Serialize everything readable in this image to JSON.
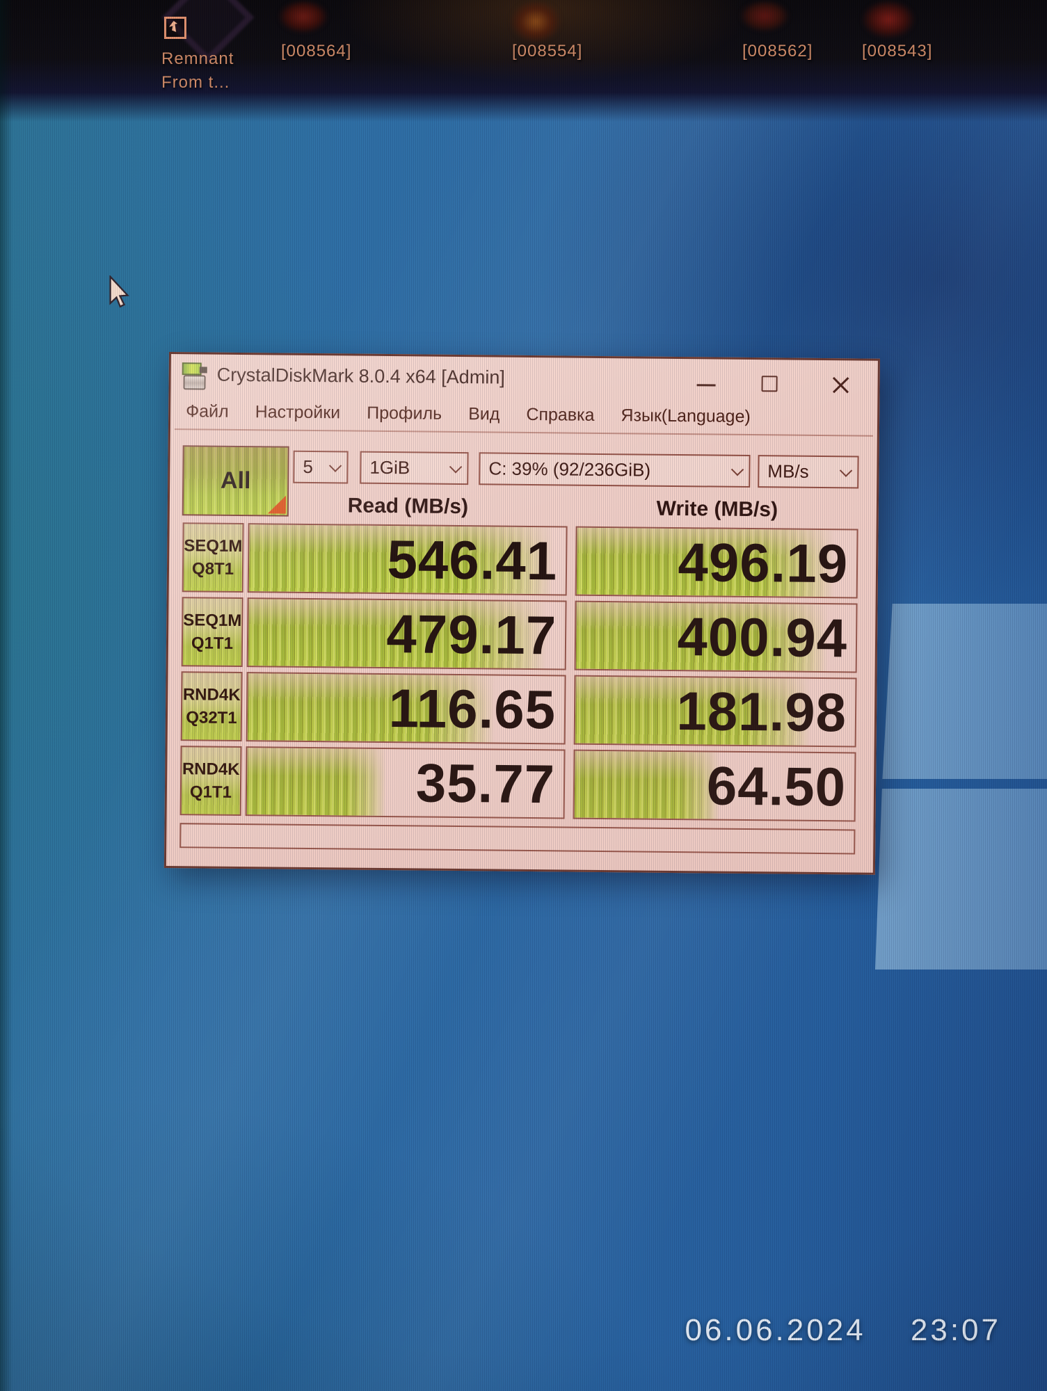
{
  "desktop": {
    "icons": {
      "remnant": {
        "line1": "Remnant",
        "line2": "From t..."
      },
      "shots": [
        "[008564]",
        "[008554]",
        "[008562]",
        "[008543]"
      ]
    },
    "timestamp": {
      "date": "06.06.2024",
      "time": "23:07"
    }
  },
  "window": {
    "title": "CrystalDiskMark 8.0.4 x64 [Admin]",
    "menu": [
      "Файл",
      "Настройки",
      "Профиль",
      "Вид",
      "Справка",
      "Язык(Language)"
    ],
    "toolbar": {
      "all": "All",
      "count": "5",
      "size": "1GiB",
      "drive": "C: 39% (92/236GiB)",
      "unit": "MB/s"
    },
    "headers": {
      "read": "Read (MB/s)",
      "write": "Write (MB/s)"
    },
    "rows": [
      {
        "name": "SEQ1M",
        "queue": "Q8T1",
        "read": "546.41",
        "write": "496.19",
        "read_fill": 96,
        "write_fill": 92
      },
      {
        "name": "SEQ1M",
        "queue": "Q1T1",
        "read": "479.17",
        "write": "400.94",
        "read_fill": 94,
        "write_fill": 90
      },
      {
        "name": "RND4K",
        "queue": "Q32T1",
        "read": "116.65",
        "write": "181.98",
        "read_fill": 78,
        "write_fill": 84
      },
      {
        "name": "RND4K",
        "queue": "Q1T1",
        "read": "35.77",
        "write": "64.50",
        "read_fill": 44,
        "write_fill": 52
      }
    ],
    "status": ""
  },
  "colors": {
    "meter_green": "#bccb4c",
    "window_bg_cast": "#f1cfc7",
    "desktop_blue": "#2c68a4",
    "accent_triangle": "#e0561f"
  },
  "icon_names": [
    "app-disk-gauge-icon",
    "minimize-icon",
    "maximize-icon",
    "close-icon",
    "chevron-down-icon",
    "mouse-cursor-icon",
    "remnant-game-icon"
  ]
}
